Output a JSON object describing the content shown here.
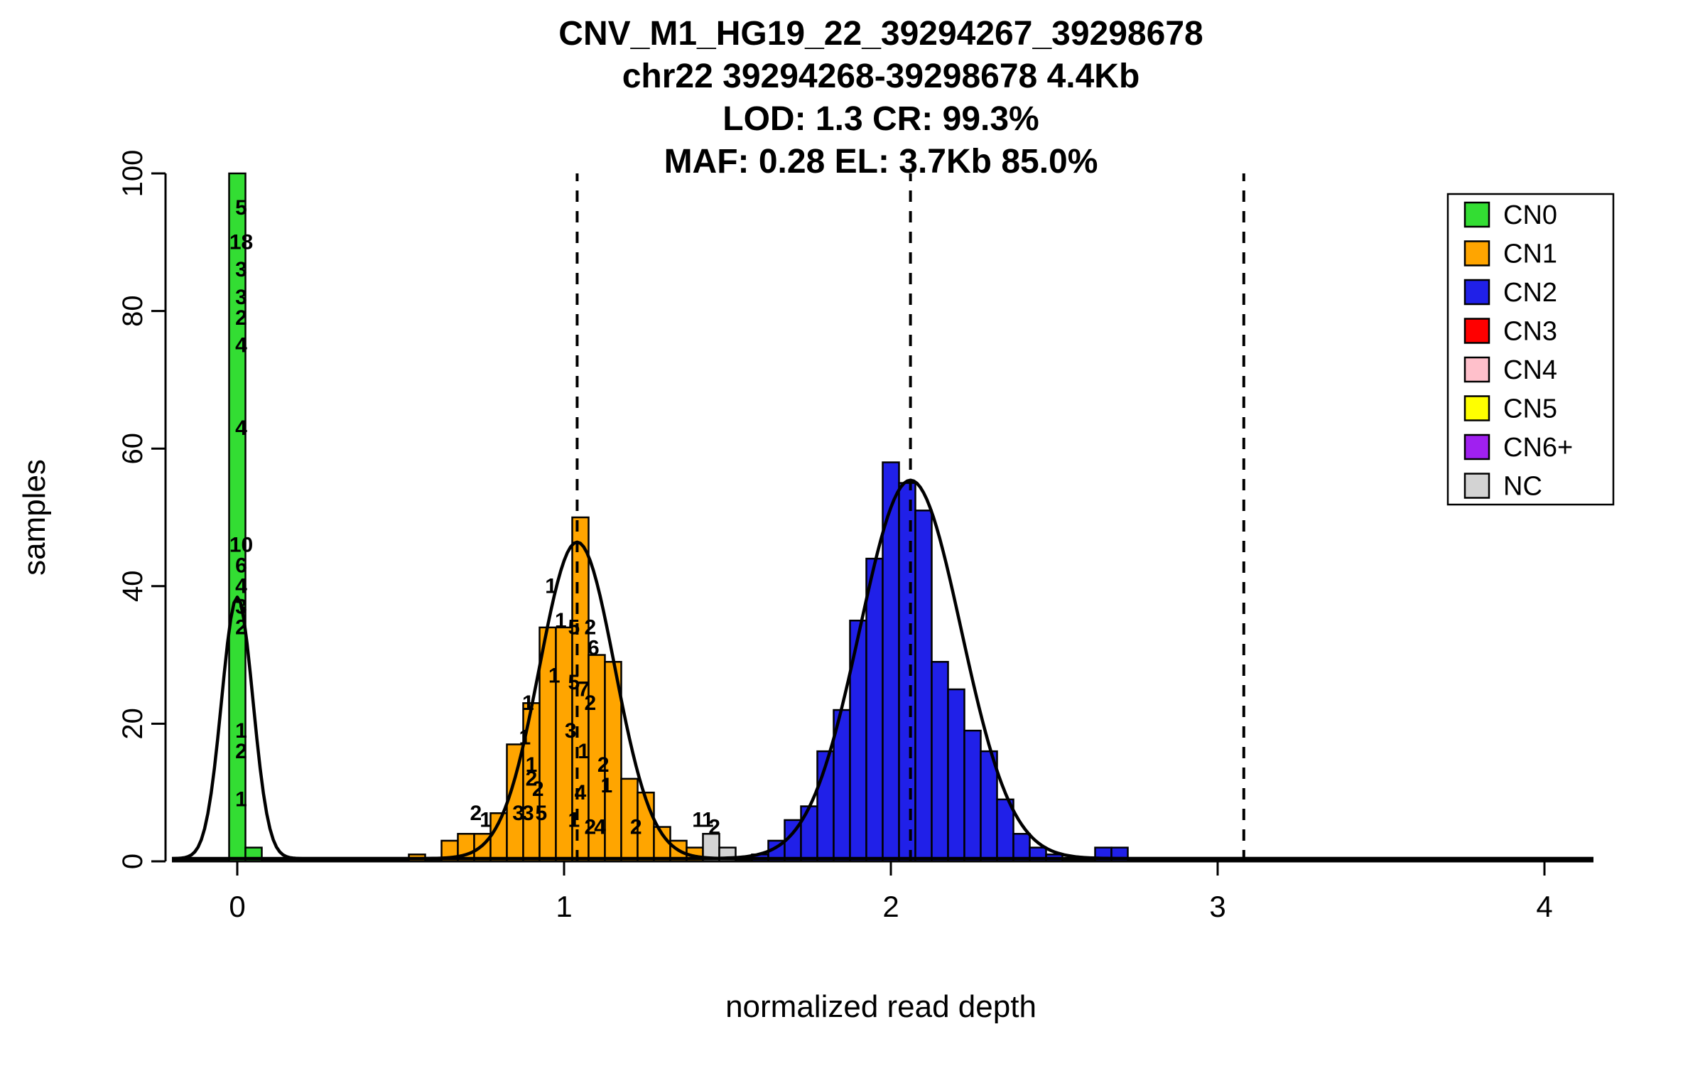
{
  "title_lines": [
    "CNV_M1_HG19_22_39294267_39298678",
    "chr22 39294268-39298678 4.4Kb",
    "LOD: 1.3 CR: 99.3%",
    "MAF: 0.28 EL: 3.7Kb 85.0%"
  ],
  "axes": {
    "xlabel": "normalized read depth",
    "ylabel": "samples",
    "x_ticks": [
      0,
      1,
      2,
      3,
      4
    ],
    "y_ticks": [
      0,
      20,
      40,
      60,
      80,
      100
    ],
    "xlim": [
      -0.2,
      4.15
    ],
    "ylim": [
      0,
      100
    ]
  },
  "legend": {
    "items": [
      {
        "label": "CN0",
        "color": "#33DD33"
      },
      {
        "label": "CN1",
        "color": "#FFA500"
      },
      {
        "label": "CN2",
        "color": "#2020E8"
      },
      {
        "label": "CN3",
        "color": "#FF0000"
      },
      {
        "label": "CN4",
        "color": "#FFC0CB"
      },
      {
        "label": "CN5",
        "color": "#FFFF00"
      },
      {
        "label": "CN6+",
        "color": "#A020F0"
      },
      {
        "label": "NC",
        "color": "#D3D3D3"
      }
    ]
  },
  "chart_data": {
    "type": "bar",
    "title": "CNV_M1_HG19_22_39294267_39298678",
    "xlabel": "normalized read depth",
    "ylabel": "samples",
    "xlim": [
      -0.2,
      4.15
    ],
    "ylim": [
      0,
      100
    ],
    "bin_width": 0.05,
    "series": [
      {
        "name": "CN0",
        "color": "#33DD33",
        "bins": [
          {
            "x": 0.0,
            "h": 100
          },
          {
            "x": 0.05,
            "h": 2
          }
        ]
      },
      {
        "name": "CN1",
        "color": "#FFA500",
        "bins": [
          {
            "x": 0.55,
            "h": 1
          },
          {
            "x": 0.65,
            "h": 3
          },
          {
            "x": 0.7,
            "h": 4
          },
          {
            "x": 0.75,
            "h": 4
          },
          {
            "x": 0.8,
            "h": 7
          },
          {
            "x": 0.85,
            "h": 17
          },
          {
            "x": 0.9,
            "h": 23
          },
          {
            "x": 0.95,
            "h": 34
          },
          {
            "x": 1.0,
            "h": 34
          },
          {
            "x": 1.05,
            "h": 50
          },
          {
            "x": 1.1,
            "h": 30
          },
          {
            "x": 1.15,
            "h": 29
          },
          {
            "x": 1.2,
            "h": 12
          },
          {
            "x": 1.25,
            "h": 10
          },
          {
            "x": 1.3,
            "h": 5
          },
          {
            "x": 1.35,
            "h": 3
          },
          {
            "x": 1.4,
            "h": 2
          }
        ]
      },
      {
        "name": "NC",
        "color": "#D3D3D3",
        "bins": [
          {
            "x": 1.45,
            "h": 4
          },
          {
            "x": 1.5,
            "h": 2
          }
        ]
      },
      {
        "name": "CN2",
        "color": "#2020E8",
        "bins": [
          {
            "x": 1.6,
            "h": 1
          },
          {
            "x": 1.65,
            "h": 3
          },
          {
            "x": 1.7,
            "h": 6
          },
          {
            "x": 1.75,
            "h": 8
          },
          {
            "x": 1.8,
            "h": 16
          },
          {
            "x": 1.85,
            "h": 22
          },
          {
            "x": 1.9,
            "h": 35
          },
          {
            "x": 1.95,
            "h": 44
          },
          {
            "x": 2.0,
            "h": 58
          },
          {
            "x": 2.05,
            "h": 55
          },
          {
            "x": 2.1,
            "h": 51
          },
          {
            "x": 2.15,
            "h": 29
          },
          {
            "x": 2.2,
            "h": 25
          },
          {
            "x": 2.25,
            "h": 19
          },
          {
            "x": 2.3,
            "h": 16
          },
          {
            "x": 2.35,
            "h": 9
          },
          {
            "x": 2.4,
            "h": 4
          },
          {
            "x": 2.45,
            "h": 2
          },
          {
            "x": 2.5,
            "h": 1
          },
          {
            "x": 2.65,
            "h": 2
          },
          {
            "x": 2.7,
            "h": 2
          }
        ]
      }
    ],
    "curves": [
      {
        "mean": 0.0,
        "sd": 0.048,
        "peak": 38
      },
      {
        "mean": 1.04,
        "sd": 0.115,
        "peak": 46
      },
      {
        "mean": 2.06,
        "sd": 0.155,
        "peak": 55
      }
    ],
    "dashed_lines": [
      1.04,
      2.06,
      3.08
    ],
    "annotations": [
      {
        "x": 0.012,
        "y": 94,
        "text": "5"
      },
      {
        "x": 0.012,
        "y": 89,
        "text": "18"
      },
      {
        "x": 0.012,
        "y": 85,
        "text": "3"
      },
      {
        "x": 0.012,
        "y": 81,
        "text": "3"
      },
      {
        "x": 0.012,
        "y": 78,
        "text": "2"
      },
      {
        "x": 0.012,
        "y": 74,
        "text": "4"
      },
      {
        "x": 0.012,
        "y": 62,
        "text": "4"
      },
      {
        "x": 0.012,
        "y": 45,
        "text": "10"
      },
      {
        "x": 0.012,
        "y": 42,
        "text": "6"
      },
      {
        "x": 0.012,
        "y": 39,
        "text": "4"
      },
      {
        "x": 0.012,
        "y": 36,
        "text": "3"
      },
      {
        "x": 0.012,
        "y": 33,
        "text": "2"
      },
      {
        "x": 0.012,
        "y": 18,
        "text": "1"
      },
      {
        "x": 0.012,
        "y": 15,
        "text": "2"
      },
      {
        "x": 0.012,
        "y": 8,
        "text": "1"
      },
      {
        "x": 0.96,
        "y": 39,
        "text": "1"
      },
      {
        "x": 0.99,
        "y": 34,
        "text": "1"
      },
      {
        "x": 1.03,
        "y": 33,
        "text": "5"
      },
      {
        "x": 1.08,
        "y": 33,
        "text": "2"
      },
      {
        "x": 1.09,
        "y": 30,
        "text": "6"
      },
      {
        "x": 0.97,
        "y": 26,
        "text": "1"
      },
      {
        "x": 1.03,
        "y": 25,
        "text": "5"
      },
      {
        "x": 1.06,
        "y": 24,
        "text": "7"
      },
      {
        "x": 1.08,
        "y": 22,
        "text": "2"
      },
      {
        "x": 0.89,
        "y": 22,
        "text": "1"
      },
      {
        "x": 1.02,
        "y": 18,
        "text": "3"
      },
      {
        "x": 0.88,
        "y": 17,
        "text": "1"
      },
      {
        "x": 1.06,
        "y": 15,
        "text": "1"
      },
      {
        "x": 1.12,
        "y": 13,
        "text": "2"
      },
      {
        "x": 0.9,
        "y": 13,
        "text": "1"
      },
      {
        "x": 0.9,
        "y": 11,
        "text": "2"
      },
      {
        "x": 0.92,
        "y": 9.5,
        "text": "2"
      },
      {
        "x": 1.13,
        "y": 10,
        "text": "1"
      },
      {
        "x": 1.05,
        "y": 9,
        "text": "4"
      },
      {
        "x": 0.86,
        "y": 6,
        "text": "3"
      },
      {
        "x": 0.89,
        "y": 6,
        "text": "3"
      },
      {
        "x": 0.93,
        "y": 6,
        "text": "5"
      },
      {
        "x": 0.73,
        "y": 6,
        "text": "2"
      },
      {
        "x": 0.76,
        "y": 5,
        "text": "1"
      },
      {
        "x": 1.03,
        "y": 5,
        "text": "1"
      },
      {
        "x": 1.08,
        "y": 4,
        "text": "2"
      },
      {
        "x": 1.11,
        "y": 4,
        "text": "4"
      },
      {
        "x": 1.22,
        "y": 4,
        "text": "2"
      },
      {
        "x": 1.41,
        "y": 5,
        "text": "1"
      },
      {
        "x": 1.44,
        "y": 5,
        "text": "1"
      },
      {
        "x": 1.46,
        "y": 4,
        "text": "2"
      }
    ]
  }
}
